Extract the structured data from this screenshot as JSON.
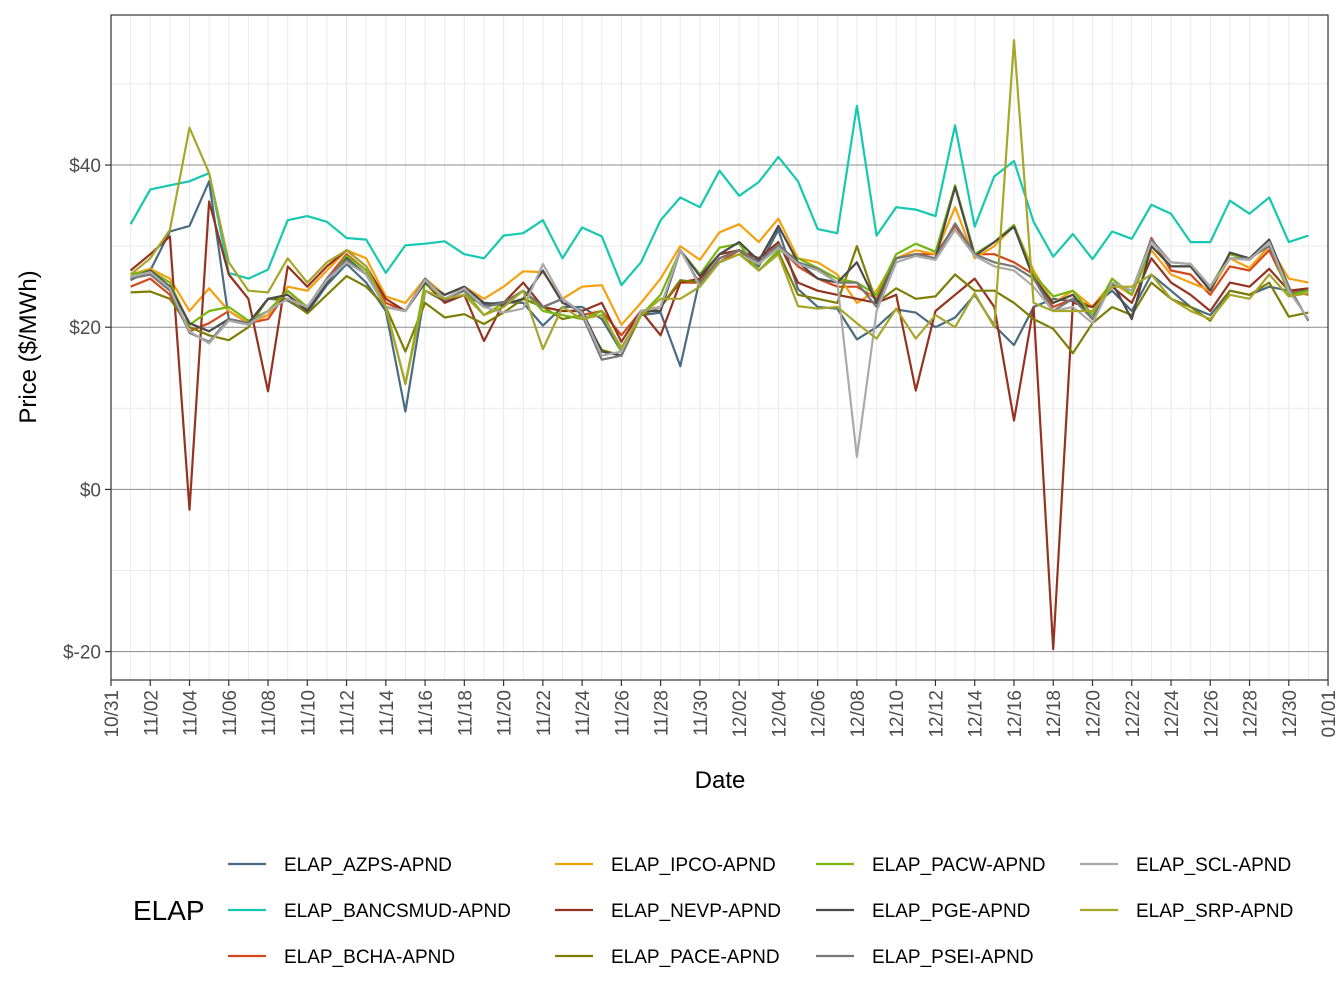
{
  "chart_data": {
    "type": "line",
    "xlabel": "Date",
    "ylabel": "Price ($/MWh)",
    "ylim": [
      -23.5,
      58.5
    ],
    "y_ticks": [
      -20,
      0,
      20,
      40
    ],
    "y_tick_labels": [
      "$-20",
      "$0",
      "$20",
      "$40"
    ],
    "x_tick_labels": [
      "10/31",
      "11/02",
      "11/04",
      "11/06",
      "11/08",
      "11/10",
      "11/12",
      "11/14",
      "11/16",
      "11/18",
      "11/20",
      "11/22",
      "11/24",
      "11/26",
      "11/28",
      "11/30",
      "12/02",
      "12/04",
      "12/06",
      "12/08",
      "12/10",
      "12/12",
      "12/14",
      "12/16",
      "12/18",
      "12/20",
      "12/22",
      "12/24",
      "12/26",
      "12/28",
      "12/30",
      "01/01"
    ],
    "grid": true,
    "legend": {
      "title": "ELAP",
      "position": "bottom"
    },
    "x": [
      "11/01",
      "11/02",
      "11/03",
      "11/04",
      "11/05",
      "11/06",
      "11/07",
      "11/08",
      "11/09",
      "11/10",
      "11/11",
      "11/12",
      "11/13",
      "11/14",
      "11/15",
      "11/16",
      "11/17",
      "11/18",
      "11/19",
      "11/20",
      "11/21",
      "11/22",
      "11/23",
      "11/24",
      "11/25",
      "11/26",
      "11/27",
      "11/28",
      "11/29",
      "11/30",
      "12/01",
      "12/02",
      "12/03",
      "12/04",
      "12/05",
      "12/06",
      "12/07",
      "12/08",
      "12/09",
      "12/10",
      "12/11",
      "12/12",
      "12/13",
      "12/14",
      "12/15",
      "12/16",
      "12/17",
      "12/18",
      "12/19",
      "12/20",
      "12/21",
      "12/22",
      "12/23",
      "12/24",
      "12/25",
      "12/26",
      "12/27",
      "12/28",
      "12/29",
      "12/30",
      "12/31"
    ],
    "series": [
      {
        "name": "ELAP_AZPS-APND",
        "color": "#4a6b82",
        "values": [
          25.8,
          27.0,
          31.8,
          32.5,
          38.0,
          21.0,
          20.5,
          23.5,
          23.3,
          21.8,
          25.2,
          27.8,
          25.5,
          22.0,
          9.6,
          24.5,
          23.2,
          24.0,
          22.8,
          23.1,
          23.0,
          20.2,
          22.5,
          22.5,
          21.0,
          17.0,
          21.5,
          21.8,
          15.2,
          26.0,
          28.0,
          29.5,
          27.5,
          32.0,
          24.7,
          22.5,
          22.3,
          18.5,
          20.0,
          22.2,
          21.8,
          20.0,
          21.2,
          24.0,
          20.2,
          17.8,
          22.5,
          23.5,
          23.2,
          22.5,
          24.5,
          22.0,
          26.5,
          24.5,
          22.5,
          21.5,
          24.5,
          24.0,
          25.0,
          24.5,
          24.5
        ]
      },
      {
        "name": "ELAP_BANCSMUD-APND",
        "color": "#16c8b0",
        "values": [
          32.7,
          37.0,
          37.5,
          38.0,
          39.0,
          26.7,
          26.0,
          27.1,
          33.2,
          33.7,
          33.0,
          31.0,
          30.8,
          26.7,
          30.1,
          30.3,
          30.6,
          29.0,
          28.5,
          31.3,
          31.6,
          33.2,
          28.5,
          32.3,
          31.2,
          25.2,
          28.0,
          33.2,
          36.0,
          34.8,
          39.3,
          36.2,
          37.9,
          41.0,
          38.0,
          32.1,
          31.6,
          47.3,
          31.3,
          34.8,
          34.5,
          33.7,
          44.9,
          32.4,
          38.6,
          40.5,
          33.0,
          28.7,
          31.5,
          28.4,
          31.8,
          30.9,
          35.1,
          34.0,
          30.5,
          30.5,
          35.6,
          34.0,
          36.0,
          30.5,
          31.3
        ]
      },
      {
        "name": "ELAP_BCHA-APND",
        "color": "#d2491e",
        "values": [
          25.0,
          26.0,
          24.0,
          19.5,
          20.5,
          22.0,
          20.5,
          21.0,
          24.5,
          22.3,
          26.0,
          29.0,
          27.0,
          23.0,
          22.0,
          26.0,
          23.5,
          24.5,
          22.5,
          23.0,
          24.5,
          22.5,
          23.5,
          21.5,
          22.0,
          19.0,
          22.0,
          22.5,
          25.5,
          25.5,
          28.0,
          29.5,
          28.0,
          30.0,
          27.5,
          26.0,
          25.0,
          25.0,
          23.5,
          28.5,
          29.0,
          29.0,
          32.5,
          29.0,
          29.0,
          28.0,
          26.5,
          22.5,
          23.5,
          22.5,
          25.5,
          24.0,
          31.0,
          27.0,
          26.5,
          24.0,
          27.5,
          27.0,
          29.5,
          24.5,
          24.0
        ]
      },
      {
        "name": "ELAP_IPCO-APND",
        "color": "#f5a10f",
        "values": [
          26.5,
          27.2,
          26.0,
          22.0,
          24.8,
          22.0,
          20.5,
          21.5,
          25.0,
          24.5,
          27.0,
          29.5,
          28.5,
          23.8,
          23.0,
          26.0,
          24.0,
          25.0,
          23.5,
          25.0,
          26.9,
          26.8,
          23.5,
          25.0,
          25.2,
          20.3,
          23.0,
          26.0,
          30.0,
          28.3,
          31.7,
          32.7,
          30.5,
          33.4,
          28.5,
          28.0,
          26.5,
          23.0,
          24.5,
          28.5,
          29.5,
          29.0,
          34.8,
          28.5,
          30.0,
          32.5,
          27.0,
          23.0,
          24.5,
          22.5,
          25.5,
          24.0,
          29.5,
          26.5,
          25.5,
          24.5,
          28.5,
          27.3,
          30.0,
          26.0,
          25.5
        ]
      },
      {
        "name": "ELAP_NEVP-APND",
        "color": "#94331f",
        "values": [
          27.0,
          29.0,
          31.2,
          -2.5,
          35.5,
          26.5,
          23.5,
          12.1,
          27.5,
          25.0,
          27.5,
          29.5,
          27.5,
          23.5,
          22.0,
          25.5,
          23.0,
          24.0,
          18.3,
          23.0,
          25.5,
          22.5,
          22.0,
          22.0,
          23.0,
          18.2,
          22.0,
          19.0,
          25.5,
          26.0,
          29.0,
          29.5,
          28.5,
          30.5,
          25.5,
          24.5,
          24.0,
          23.5,
          23.0,
          24.0,
          12.2,
          22.0,
          24.0,
          26.0,
          22.5,
          8.5,
          22.5,
          -19.7,
          23.0,
          22.5,
          25.0,
          23.0,
          28.5,
          25.5,
          24.0,
          22.0,
          25.5,
          25.0,
          27.2,
          24.5,
          24.8
        ]
      },
      {
        "name": "ELAP_PACE-APND",
        "color": "#7e7d04",
        "values": [
          24.3,
          24.4,
          23.5,
          20.0,
          19.0,
          18.4,
          20.0,
          23.5,
          23.5,
          21.7,
          24.0,
          26.3,
          25.0,
          22.5,
          17.0,
          23.0,
          21.2,
          21.6,
          20.4,
          21.8,
          23.5,
          22.5,
          21.0,
          21.5,
          17.2,
          16.5,
          21.5,
          22.5,
          25.8,
          25.5,
          28.5,
          29.5,
          27.0,
          29.3,
          24.0,
          23.5,
          23.0,
          30.0,
          23.0,
          24.8,
          23.5,
          23.8,
          26.5,
          24.5,
          24.5,
          23.0,
          21.0,
          19.8,
          16.8,
          20.5,
          22.5,
          21.5,
          25.5,
          23.5,
          22.5,
          20.8,
          24.5,
          24.0,
          25.5,
          21.3,
          21.8
        ]
      },
      {
        "name": "ELAP_PACW-APND",
        "color": "#76b611",
        "values": [
          26.5,
          27.0,
          25.5,
          20.3,
          22.0,
          22.5,
          20.8,
          22.0,
          24.5,
          22.5,
          25.5,
          28.8,
          27.0,
          22.5,
          13.0,
          25.5,
          23.5,
          24.5,
          21.5,
          23.0,
          24.5,
          22.0,
          21.5,
          21.0,
          22.0,
          17.0,
          21.5,
          24.0,
          29.5,
          26.5,
          29.8,
          30.3,
          27.0,
          29.5,
          28.5,
          27.3,
          26.0,
          25.5,
          24.0,
          29.0,
          30.3,
          29.3,
          37.5,
          29.0,
          30.5,
          32.6,
          26.5,
          23.8,
          24.5,
          21.5,
          26.0,
          24.0,
          30.0,
          27.5,
          27.5,
          25.0,
          29.0,
          28.3,
          30.5,
          24.0,
          24.5
        ]
      },
      {
        "name": "ELAP_PGE-APND",
        "color": "#4a4a4a",
        "values": [
          26.0,
          27.0,
          25.0,
          20.5,
          19.5,
          21.0,
          20.5,
          23.5,
          24.0,
          22.0,
          25.5,
          28.5,
          26.5,
          22.5,
          22.0,
          25.5,
          24.0,
          25.0,
          23.0,
          22.8,
          23.5,
          27.0,
          23.0,
          22.0,
          17.0,
          16.5,
          22.0,
          22.0,
          29.5,
          26.3,
          29.0,
          30.5,
          28.2,
          32.5,
          28.0,
          26.0,
          25.5,
          28.0,
          23.0,
          28.5,
          29.0,
          28.5,
          37.3,
          28.8,
          30.5,
          32.4,
          26.0,
          23.0,
          24.0,
          21.0,
          25.5,
          21.0,
          30.0,
          27.5,
          27.5,
          24.5,
          29.2,
          28.5,
          30.8,
          25.0,
          20.8
        ]
      },
      {
        "name": "ELAP_PSEI-APND",
        "color": "#777777",
        "values": [
          26.0,
          26.5,
          24.5,
          19.3,
          18.2,
          21.0,
          20.5,
          22.0,
          23.5,
          22.5,
          26.0,
          28.3,
          26.5,
          22.5,
          22.0,
          26.0,
          23.5,
          24.5,
          22.5,
          23.0,
          24.5,
          22.5,
          23.5,
          21.5,
          16.0,
          16.5,
          22.0,
          22.5,
          29.5,
          25.3,
          28.5,
          29.5,
          28.0,
          30.2,
          28.0,
          27.2,
          25.5,
          25.5,
          22.5,
          28.5,
          29.0,
          28.5,
          32.8,
          29.0,
          28.0,
          27.5,
          26.0,
          22.0,
          23.5,
          21.0,
          25.5,
          24.5,
          30.8,
          28.0,
          27.8,
          25.0,
          28.5,
          28.5,
          30.0,
          25.0,
          20.8
        ]
      },
      {
        "name": "ELAP_SCL-APND",
        "color": "#aaaaaa",
        "values": [
          26.2,
          26.8,
          24.8,
          19.5,
          18.0,
          20.8,
          20.3,
          22.0,
          23.5,
          22.5,
          25.8,
          28.0,
          26.5,
          22.5,
          22.0,
          25.8,
          23.5,
          24.8,
          22.5,
          21.8,
          22.3,
          27.8,
          23.5,
          21.8,
          16.5,
          17.0,
          22.0,
          22.5,
          29.6,
          25.0,
          28.0,
          29.0,
          27.8,
          29.8,
          27.8,
          27.0,
          25.5,
          4.0,
          22.0,
          28.0,
          28.8,
          28.3,
          32.0,
          28.8,
          27.5,
          27.0,
          25.0,
          22.0,
          22.5,
          20.5,
          25.5,
          24.5,
          30.5,
          28.0,
          27.8,
          25.0,
          28.5,
          28.3,
          30.5,
          24.5,
          21.0
        ]
      },
      {
        "name": "ELAP_SRP-APND",
        "color": "#a6a62a",
        "values": [
          26.5,
          28.5,
          32.0,
          44.6,
          39.0,
          28.0,
          24.5,
          24.3,
          28.5,
          25.5,
          28.0,
          29.5,
          27.5,
          22.5,
          13.0,
          24.5,
          23.5,
          24.0,
          21.5,
          22.5,
          24.5,
          17.3,
          22.5,
          21.0,
          21.5,
          17.5,
          21.5,
          23.5,
          23.5,
          25.0,
          28.0,
          29.0,
          27.0,
          29.0,
          22.6,
          22.3,
          22.5,
          20.5,
          18.6,
          22.3,
          18.6,
          21.5,
          20.0,
          24.2,
          20.0,
          55.4,
          23.0,
          22.0,
          22.0,
          22.0,
          25.0,
          25.0,
          26.5,
          23.5,
          22.0,
          21.0,
          24.0,
          23.5,
          26.5,
          23.8,
          24.2
        ]
      }
    ]
  }
}
